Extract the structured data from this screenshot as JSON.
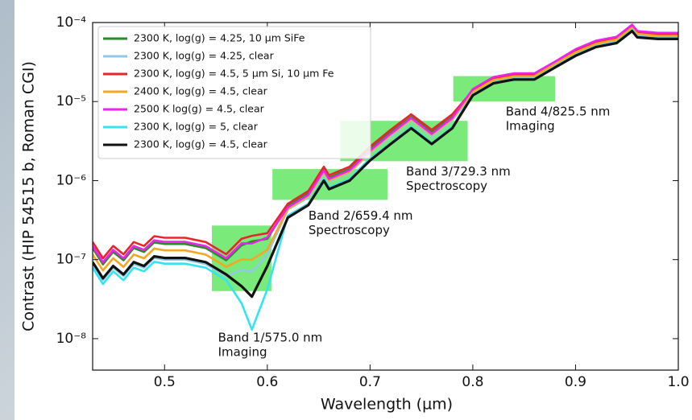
{
  "chart_data": {
    "type": "line",
    "yscale": "log",
    "legend": "upper left",
    "x_label": "Wavelength (µm)",
    "y_label": "Contrast (HIP 54515 b, Roman CGI)",
    "xlim": [
      0.43,
      1.0
    ],
    "ylim": [
      4e-09,
      0.0001
    ],
    "xticks": [
      0.5,
      0.6,
      0.7,
      0.8,
      0.9,
      {
        "value": 1,
        "label": "1.0"
      }
    ],
    "yticks": [
      {
        "value": 1e-08,
        "label": "10⁻⁸"
      },
      {
        "value": 1e-07,
        "label": "10⁻⁷"
      },
      {
        "value": 1e-06,
        "label": "10⁻⁶"
      },
      {
        "value": 1e-05,
        "label": "10⁻⁵"
      },
      {
        "value": 0.0001,
        "label": "10⁻⁴"
      }
    ],
    "regions": [
      {
        "label": [
          "Band 1/575.0 nm",
          "Imaging"
        ],
        "x": [
          0.546,
          0.604
        ],
        "y": [
          4e-08,
          2.7e-07
        ],
        "color": "#22dd22"
      },
      {
        "label": [
          "Band 2/659.4 nm",
          "Spectroscopy"
        ],
        "x": [
          0.605,
          0.717
        ],
        "y": [
          5.7e-07,
          1.4e-06
        ],
        "color": "#22dd22"
      },
      {
        "label": [
          "Band 3/729.3 nm",
          "Spectroscopy"
        ],
        "x": [
          0.671,
          0.795
        ],
        "y": [
          1.76e-06,
          5.7e-06
        ],
        "color": "#22dd22"
      },
      {
        "label": [
          "Band 4/825.5 nm",
          "Imaging"
        ],
        "x": [
          0.781,
          0.88
        ],
        "y": [
          1e-05,
          2.1e-05
        ],
        "color": "#22dd22"
      }
    ],
    "x": [
      0.43,
      0.44,
      0.45,
      0.46,
      0.47,
      0.48,
      0.49,
      0.5,
      0.52,
      0.54,
      0.56,
      0.575,
      0.585,
      0.6,
      0.62,
      0.64,
      0.655,
      0.66,
      0.68,
      0.7,
      0.72,
      0.74,
      0.76,
      0.78,
      0.8,
      0.82,
      0.84,
      0.86,
      0.88,
      0.9,
      0.92,
      0.94,
      0.955,
      0.96,
      0.98,
      1.0
    ],
    "series": [
      {
        "name": "2300 K, log(g) = 4.25, 10 µm SiFe",
        "color": "#2a8a2a",
        "values": [
          1.4e-07,
          8.7e-08,
          1.25e-07,
          9.8e-08,
          1.4e-07,
          1.25e-07,
          1.65e-07,
          1.58e-07,
          1.58e-07,
          1.4e-07,
          9.8e-08,
          1.52e-07,
          1.7e-07,
          1.83e-07,
          4.8e-07,
          6.9e-07,
          1.4e-06,
          1.09e-06,
          1.4e-06,
          2.5e-06,
          4.1e-06,
          6.4e-06,
          4.1e-06,
          6.4e-06,
          1.32e-05,
          1.87e-05,
          2.09e-05,
          2.09e-05,
          3e-05,
          4.2e-05,
          5.4e-05,
          6.1e-05,
          8.6e-05,
          7.2e-05,
          6.8e-05,
          6.8e-05
        ]
      },
      {
        "name": "2300 K, log(g) = 4.25, clear",
        "color": "#8ecae6",
        "values": [
          8.8e-08,
          5.5e-08,
          7.9e-08,
          6.2e-08,
          8.8e-08,
          7.9e-08,
          1.05e-07,
          1e-07,
          1e-07,
          8.8e-08,
          6.2e-08,
          7.4e-08,
          7e-08,
          1.16e-07,
          4.3e-07,
          6.1e-07,
          1.25e-06,
          9.8e-07,
          1.25e-06,
          2.25e-06,
          3.6e-06,
          5.8e-06,
          3.6e-06,
          5.8e-06,
          1.26e-05,
          1.79e-05,
          2e-05,
          2e-05,
          2.8e-05,
          4e-05,
          5.1e-05,
          5.8e-05,
          8.2e-05,
          6.8e-05,
          6.5e-05,
          6.5e-05
        ]
      },
      {
        "name": "2300 K, log(g) = 4.5, 5 µm Si, 10 µm Fe",
        "color": "#e8262a",
        "values": [
          1.67e-07,
          1.04e-07,
          1.49e-07,
          1.17e-07,
          1.67e-07,
          1.49e-07,
          1.98e-07,
          1.89e-07,
          1.89e-07,
          1.67e-07,
          1.17e-07,
          1.84e-07,
          2e-07,
          2.16e-07,
          5.1e-07,
          7.4e-07,
          1.5e-06,
          1.17e-06,
          1.5e-06,
          2.7e-06,
          4.4e-06,
          6.9e-06,
          4.4e-06,
          6.9e-06,
          1.38e-05,
          1.96e-05,
          2.19e-05,
          2.19e-05,
          3.1e-05,
          4.4e-05,
          5.6e-05,
          6.3e-05,
          9e-05,
          7.5e-05,
          7.1e-05,
          7.1e-05
        ]
      },
      {
        "name": "2400 K, log(g) = 4.5, clear",
        "color": "#f5a623",
        "values": [
          1.16e-07,
          7.3e-08,
          1.04e-07,
          8.1e-08,
          1.16e-07,
          1.04e-07,
          1.38e-07,
          1.31e-07,
          1.31e-07,
          1.16e-07,
          8.1e-08,
          1.01e-07,
          1e-07,
          1.33e-07,
          4.4e-07,
          6.4e-07,
          1.3e-06,
          1.01e-06,
          1.3e-06,
          2.3e-06,
          3.8e-06,
          6e-06,
          3.8e-06,
          6e-06,
          1.32e-05,
          1.87e-05,
          2.09e-05,
          2.09e-05,
          3e-05,
          4.2e-05,
          5.4e-05,
          6.1e-05,
          8.6e-05,
          7.2e-05,
          6.8e-05,
          6.8e-05
        ]
      },
      {
        "name": "2500 K log(g) = 4.5, clear",
        "color": "#ee22ee",
        "values": [
          1.49e-07,
          9.3e-08,
          1.33e-07,
          1.04e-07,
          1.49e-07,
          1.33e-07,
          1.76e-07,
          1.68e-07,
          1.68e-07,
          1.49e-07,
          1.04e-07,
          1.61e-07,
          1.6e-07,
          1.91e-07,
          4.6e-07,
          6.6e-07,
          1.35e-06,
          1.05e-06,
          1.35e-06,
          2.4e-06,
          3.9e-06,
          6.2e-06,
          3.9e-06,
          6.2e-06,
          1.44e-05,
          2.04e-05,
          2.28e-05,
          2.28e-05,
          3.2e-05,
          4.6e-05,
          5.9e-05,
          6.6e-05,
          9.4e-05,
          7.8e-05,
          7.4e-05,
          7.4e-05
        ]
      },
      {
        "name": "2300 K, log(g) = 5, clear",
        "color": "#33e5f0",
        "values": [
          7.9e-08,
          4.9e-08,
          7.1e-08,
          5.5e-08,
          7.9e-08,
          7.1e-08,
          9.4e-08,
          8.9e-08,
          8.9e-08,
          7.9e-08,
          5.5e-08,
          2.8e-08,
          1.3e-08,
          4.2e-08,
          3.6e-07,
          5.1e-07,
          1.05e-06,
          8.2e-07,
          1.05e-06,
          1.9e-06,
          3e-06,
          4.8e-06,
          3e-06,
          4.8e-06,
          1.22e-05,
          1.73e-05,
          1.94e-05,
          1.94e-05,
          2.75e-05,
          3.9e-05,
          5e-05,
          5.6e-05,
          8e-05,
          6.6e-05,
          6.3e-05,
          6.3e-05
        ]
      },
      {
        "name": "2300 K, log(g) = 4.5, clear",
        "color": "#111111",
        "values": [
          9.3e-08,
          5.8e-08,
          8.3e-08,
          6.5e-08,
          9.3e-08,
          8.3e-08,
          1.1e-07,
          1.05e-07,
          1.05e-07,
          9.3e-08,
          6.5e-08,
          4.6e-08,
          3.4e-08,
          8.3e-08,
          3.4e-07,
          4.9e-07,
          1e-06,
          7.8e-07,
          1e-06,
          1.8e-06,
          2.9e-06,
          4.6e-06,
          2.9e-06,
          4.6e-06,
          1.2e-05,
          1.7e-05,
          1.9e-05,
          1.9e-05,
          2.7e-05,
          3.8e-05,
          4.9e-05,
          5.5e-05,
          7.8e-05,
          6.5e-05,
          6.2e-05,
          6.2e-05
        ]
      }
    ]
  }
}
